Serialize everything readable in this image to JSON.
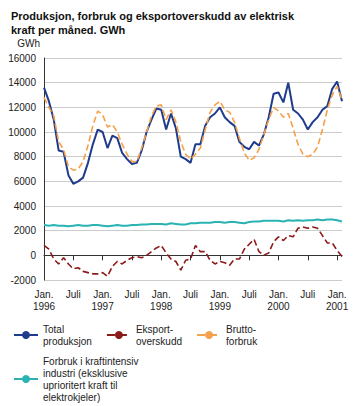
{
  "chart_data": {
    "type": "line",
    "title": "Produksjon, forbruk og eksportoverskudd av elektrisk\nkraft per måned. GWh",
    "y_label": "GWh",
    "categories": [
      "Jan.\n1996",
      null,
      null,
      null,
      null,
      null,
      "Juli",
      null,
      null,
      null,
      null,
      null,
      "Jan.\n1997",
      null,
      null,
      null,
      null,
      null,
      "Juli",
      null,
      null,
      null,
      null,
      null,
      "Jan.\n1998",
      null,
      null,
      null,
      null,
      null,
      "Juli",
      null,
      null,
      null,
      null,
      null,
      "Jan.\n1999",
      null,
      null,
      null,
      null,
      null,
      "Juli",
      null,
      null,
      null,
      null,
      null,
      "Jan.\n2000",
      null,
      null,
      null,
      null,
      null,
      "Juli",
      null,
      null,
      null,
      null,
      null,
      "Jan.\n2001",
      null
    ],
    "series": [
      {
        "name": "Total\nproduksjon",
        "color": "#1f3c8c",
        "line_style": "solid",
        "values": [
          13600,
          12500,
          11000,
          8500,
          8400,
          6500,
          5800,
          6000,
          6300,
          7500,
          9000,
          10200,
          10000,
          8700,
          9700,
          9500,
          8300,
          7800,
          7400,
          7500,
          8500,
          10000,
          11000,
          11900,
          11800,
          10200,
          11500,
          10300,
          8000,
          7800,
          7500,
          9000,
          9000,
          10500,
          11200,
          11500,
          12000,
          11200,
          10800,
          10500,
          9200,
          8800,
          8600,
          9200,
          8900,
          9800,
          11200,
          13100,
          13200,
          12400,
          14000,
          11800,
          11500,
          11000,
          10200,
          10800,
          11200,
          11800,
          12100,
          13500,
          14100,
          12500
        ]
      },
      {
        "name": "Eksport-\noverskudd",
        "color": "#8b1a1a",
        "line_style": "dashed",
        "values": [
          800,
          500,
          -300,
          -700,
          -200,
          -700,
          -1100,
          -1000,
          -1300,
          -1400,
          -1500,
          -1500,
          -1400,
          -1700,
          -900,
          -500,
          -700,
          -400,
          -200,
          -100,
          -200,
          0,
          300,
          600,
          800,
          200,
          -300,
          -500,
          -1200,
          -400,
          -300,
          800,
          300,
          300,
          -400,
          -700,
          -500,
          -600,
          -800,
          -300,
          -300,
          500,
          900,
          1300,
          300,
          0,
          200,
          1100,
          1500,
          1200,
          1600,
          1500,
          2200,
          2300,
          2200,
          2300,
          2200,
          1600,
          1000,
          1000,
          400,
          -100
        ]
      },
      {
        "name": "Brutto-\nforbruk",
        "color": "#f5a04a",
        "line_style": "dashed",
        "values": [
          12800,
          12000,
          11300,
          9200,
          8600,
          7200,
          6900,
          7000,
          7600,
          8900,
          10500,
          11700,
          11400,
          10400,
          10600,
          10000,
          9000,
          8200,
          7600,
          7600,
          8700,
          10000,
          11300,
          12100,
          12200,
          11000,
          11800,
          10800,
          9200,
          8200,
          7800,
          8200,
          8700,
          10200,
          11600,
          12200,
          12500,
          11800,
          11600,
          10800,
          9500,
          8300,
          7700,
          7900,
          8600,
          9800,
          11000,
          12000,
          11700,
          11200,
          11500,
          10300,
          9000,
          8200,
          8000,
          8200,
          8800,
          10200,
          11800,
          13000,
          13700,
          12600
        ]
      },
      {
        "name": "Forbruk i kraftintensiv\nindustri (eksklusive\nuprioritert kraft til\nelektrokjeler)",
        "color": "#2bb3b3",
        "line_style": "solid",
        "values": [
          2450,
          2400,
          2450,
          2400,
          2400,
          2350,
          2400,
          2450,
          2400,
          2400,
          2450,
          2450,
          2400,
          2350,
          2400,
          2450,
          2400,
          2400,
          2450,
          2450,
          2500,
          2500,
          2550,
          2550,
          2550,
          2500,
          2600,
          2550,
          2500,
          2500,
          2600,
          2600,
          2650,
          2650,
          2650,
          2700,
          2700,
          2650,
          2700,
          2700,
          2650,
          2600,
          2700,
          2750,
          2750,
          2800,
          2800,
          2800,
          2800,
          2750,
          2850,
          2800,
          2850,
          2800,
          2850,
          2850,
          2900,
          2850,
          2900,
          2900,
          2850,
          2750
        ]
      }
    ],
    "ylim": [
      -2000,
      16000
    ],
    "yticks": [
      -2000,
      0,
      2000,
      4000,
      6000,
      8000,
      10000,
      12000,
      14000,
      16000
    ],
    "grid": true,
    "legend": "bottom",
    "marker": "none"
  }
}
